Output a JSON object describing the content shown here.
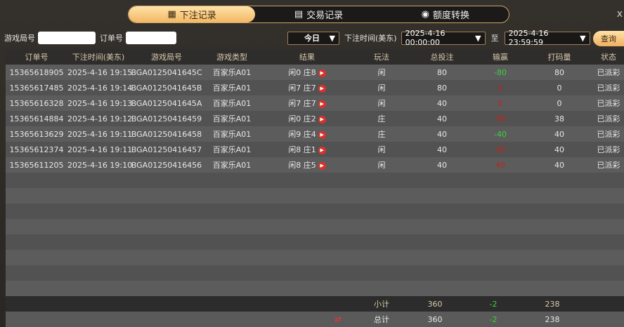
{
  "tabs": [
    {
      "label": "下注记录",
      "icon": "notebook-icon",
      "active": true
    },
    {
      "label": "交易记录",
      "icon": "document-icon"
    },
    {
      "label": "额度转换",
      "icon": "coins-icon"
    }
  ],
  "close": "x",
  "filters": {
    "round_label": "游戏局号",
    "round_value": "",
    "order_label": "订单号",
    "order_value": "",
    "period": "今日",
    "time_label": "下注时间(美东)",
    "start": "2025-4-16 00:00:00",
    "to": "至",
    "end": "2025-4-16 23:59:59",
    "query": "查询"
  },
  "columns": [
    "订单号",
    "下注时间(美东)",
    "游戏局号",
    "游戏类型",
    "结果",
    "玩法",
    "总投注",
    "输赢",
    "打码量",
    "状态"
  ],
  "rows": [
    [
      "15365618905",
      "2025-4-16 19:15",
      "BGA0125041645C",
      "百家乐A01",
      "闲0 庄8",
      "闲",
      "80",
      "-80",
      "80",
      "已派彩"
    ],
    [
      "15365617485",
      "2025-4-16 19:14",
      "BGA0125041645B",
      "百家乐A01",
      "闲7 庄7",
      "闲",
      "80",
      "0",
      "0",
      "已派彩"
    ],
    [
      "15365616328",
      "2025-4-16 19:13",
      "BGA0125041645A",
      "百家乐A01",
      "闲7 庄7",
      "闲",
      "40",
      "0",
      "0",
      "已派彩"
    ],
    [
      "15365614884",
      "2025-4-16 19:12",
      "BGA01250416459",
      "百家乐A01",
      "闲0 庄2",
      "庄",
      "40",
      "38",
      "38",
      "已派彩"
    ],
    [
      "15365613629",
      "2025-4-16 19:11",
      "BGA01250416458",
      "百家乐A01",
      "闲9 庄4",
      "庄",
      "40",
      "-40",
      "40",
      "已派彩"
    ],
    [
      "15365612374",
      "2025-4-16 19:11",
      "BGA01250416457",
      "百家乐A01",
      "闲8 庄1",
      "闲",
      "40",
      "40",
      "40",
      "已派彩"
    ],
    [
      "15365611205",
      "2025-4-16 19:10",
      "BGA01250416456",
      "百家乐A01",
      "闲8 庄5",
      "闲",
      "40",
      "40",
      "40",
      "已派彩"
    ]
  ],
  "subtotal": {
    "label": "小计",
    "bet": "360",
    "win": "-2",
    "rolling": "238"
  },
  "total": {
    "label": "总计",
    "bet": "360",
    "win": "-2",
    "rolling": "238",
    "icon": "refresh-arrows-icon"
  },
  "colors": {
    "accent": "#f2b765",
    "loss": "#3ad23a",
    "win": "#c0231e"
  }
}
